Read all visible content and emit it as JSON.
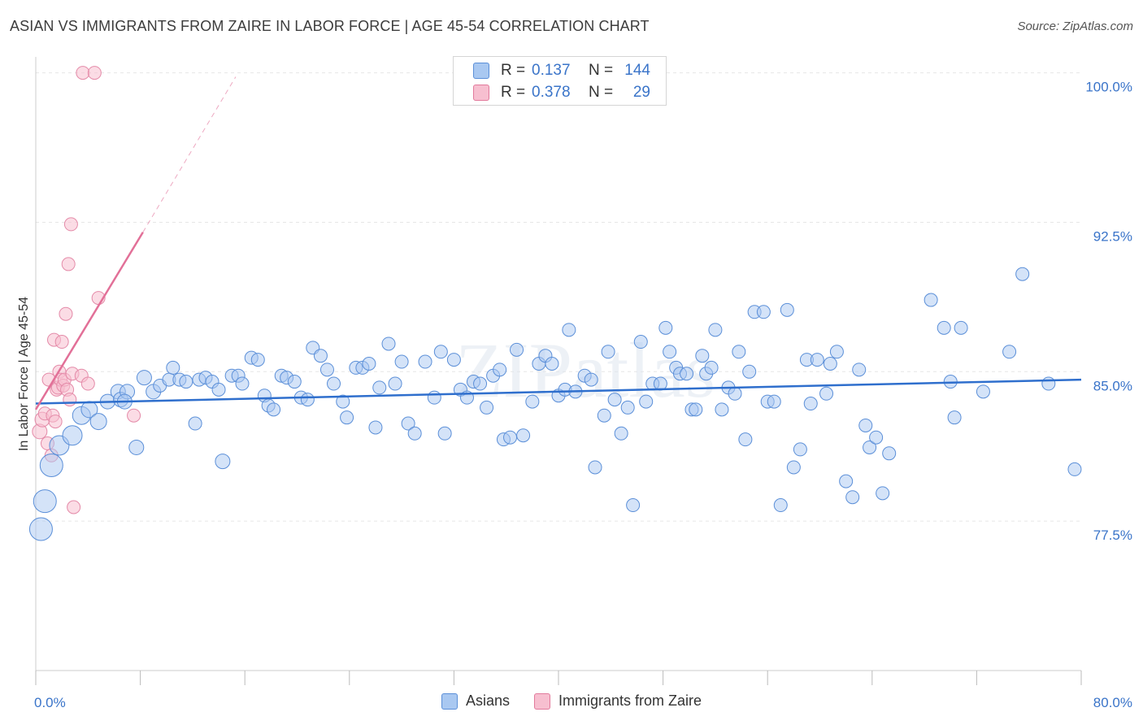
{
  "title": "ASIAN VS IMMIGRANTS FROM ZAIRE IN LABOR FORCE | AGE 45-54 CORRELATION CHART",
  "source": "Source: ZipAtlas.com",
  "watermark": "ZIPatlas",
  "legend": {
    "series": [
      {
        "name": "Asians",
        "r_label": "R =",
        "r": "0.137",
        "n_label": "N =",
        "n": "144",
        "color": "#a9c8f1",
        "stroke": "#5b8fd8"
      },
      {
        "name": "Immigrants from Zaire",
        "r_label": "R =",
        "r": "0.378",
        "n_label": "N =",
        "n": "29",
        "color": "#f7bfd0",
        "stroke": "#e27a9c"
      }
    ]
  },
  "colors": {
    "blue_fill": "#a9c8f1",
    "blue_stroke": "#5b8fd8",
    "blue_line": "#2f6fcd",
    "pink_fill": "#f7bfd0",
    "pink_stroke": "#e48aa8",
    "pink_line": "#e27098",
    "tick_text": "#3a74c9",
    "grid": "#e6e6e6"
  },
  "chart_data": {
    "type": "scatter",
    "title": "ASIAN VS IMMIGRANTS FROM ZAIRE IN LABOR FORCE | AGE 45-54 CORRELATION CHART",
    "xlabel": "",
    "ylabel": "In Labor Force | Age 45-54",
    "xlim": [
      0,
      80
    ],
    "ylim": [
      70,
      100.8
    ],
    "x_tick_labels": [
      {
        "value": 0,
        "label": "0.0%"
      },
      {
        "value": 80,
        "label": "80.0%"
      }
    ],
    "y_tick_labels": [
      {
        "value": 77.5,
        "label": "77.5%"
      },
      {
        "value": 85.0,
        "label": "85.0%"
      },
      {
        "value": 92.5,
        "label": "92.5%"
      },
      {
        "value": 100.0,
        "label": "100.0%"
      }
    ],
    "series": [
      {
        "name": "Asians",
        "R": 0.137,
        "N": 144,
        "trend": {
          "x": [
            0,
            80
          ],
          "y": [
            83.4,
            84.6
          ]
        },
        "points": [
          [
            0.4,
            77.1,
            14
          ],
          [
            0.7,
            78.5,
            14
          ],
          [
            1.2,
            80.3,
            14
          ],
          [
            1.8,
            81.3,
            12
          ],
          [
            2.8,
            81.8,
            12
          ],
          [
            3.5,
            82.8,
            11
          ],
          [
            4.1,
            83.1,
            10
          ],
          [
            4.8,
            82.5,
            10
          ],
          [
            5.5,
            83.5,
            9
          ],
          [
            6.3,
            84.0,
            9
          ],
          [
            6.5,
            83.6,
            9
          ],
          [
            7.0,
            84.0,
            9
          ],
          [
            6.8,
            83.5,
            9
          ],
          [
            7.7,
            81.2,
            9
          ],
          [
            8.3,
            84.7,
            9
          ],
          [
            9.0,
            84.0,
            9
          ],
          [
            9.5,
            84.3,
            8
          ],
          [
            10.2,
            84.6,
            8
          ],
          [
            10.5,
            85.2,
            8
          ],
          [
            11.0,
            84.6,
            8
          ],
          [
            11.5,
            84.5,
            8
          ],
          [
            12.2,
            82.4,
            8
          ],
          [
            12.5,
            84.6,
            8
          ],
          [
            13.0,
            84.7,
            8
          ],
          [
            13.5,
            84.5,
            8
          ],
          [
            14.0,
            84.1,
            8
          ],
          [
            14.3,
            80.5,
            9
          ],
          [
            15.0,
            84.8,
            8
          ],
          [
            15.5,
            84.8,
            8
          ],
          [
            15.8,
            84.4,
            8
          ],
          [
            16.5,
            85.7,
            8
          ],
          [
            17.0,
            85.6,
            8
          ],
          [
            17.5,
            83.8,
            8
          ],
          [
            17.8,
            83.3,
            8
          ],
          [
            18.2,
            83.1,
            8
          ],
          [
            18.8,
            84.8,
            8
          ],
          [
            19.2,
            84.7,
            8
          ],
          [
            19.8,
            84.5,
            8
          ],
          [
            20.3,
            83.7,
            8
          ],
          [
            20.8,
            83.6,
            8
          ],
          [
            21.2,
            86.2,
            8
          ],
          [
            21.8,
            85.8,
            8
          ],
          [
            22.3,
            85.1,
            8
          ],
          [
            22.8,
            84.4,
            8
          ],
          [
            23.5,
            83.5,
            8
          ],
          [
            23.8,
            82.7,
            8
          ],
          [
            24.5,
            85.2,
            8
          ],
          [
            25.0,
            85.2,
            8
          ],
          [
            25.5,
            85.4,
            8
          ],
          [
            26.0,
            82.2,
            8
          ],
          [
            26.3,
            84.2,
            8
          ],
          [
            27.0,
            86.4,
            8
          ],
          [
            27.5,
            84.4,
            8
          ],
          [
            28.0,
            85.5,
            8
          ],
          [
            28.5,
            82.4,
            8
          ],
          [
            29.0,
            81.9,
            8
          ],
          [
            29.8,
            85.5,
            8
          ],
          [
            30.5,
            83.7,
            8
          ],
          [
            31.0,
            86.0,
            8
          ],
          [
            31.3,
            81.9,
            8
          ],
          [
            32.0,
            85.6,
            8
          ],
          [
            32.5,
            84.1,
            8
          ],
          [
            33.0,
            83.7,
            8
          ],
          [
            33.5,
            84.5,
            8
          ],
          [
            34.0,
            84.4,
            8
          ],
          [
            34.5,
            83.2,
            8
          ],
          [
            35.0,
            84.8,
            8
          ],
          [
            35.5,
            85.1,
            8
          ],
          [
            35.8,
            81.6,
            8
          ],
          [
            36.3,
            81.7,
            8
          ],
          [
            36.8,
            86.1,
            8
          ],
          [
            37.3,
            81.8,
            8
          ],
          [
            38.0,
            83.5,
            8
          ],
          [
            38.5,
            85.4,
            8
          ],
          [
            39.0,
            85.8,
            8
          ],
          [
            39.5,
            85.4,
            8
          ],
          [
            40.0,
            83.8,
            8
          ],
          [
            40.5,
            84.1,
            8
          ],
          [
            40.8,
            87.1,
            8
          ],
          [
            41.3,
            84.0,
            8
          ],
          [
            42.0,
            84.8,
            8
          ],
          [
            42.5,
            84.6,
            8
          ],
          [
            42.8,
            80.2,
            8
          ],
          [
            43.5,
            82.8,
            8
          ],
          [
            43.8,
            86.0,
            8
          ],
          [
            44.3,
            83.6,
            8
          ],
          [
            44.8,
            81.9,
            8
          ],
          [
            45.3,
            83.2,
            8
          ],
          [
            45.7,
            78.3,
            8
          ],
          [
            46.3,
            86.5,
            8
          ],
          [
            46.7,
            83.5,
            8
          ],
          [
            47.2,
            84.4,
            8
          ],
          [
            47.8,
            84.4,
            8
          ],
          [
            48.2,
            87.2,
            8
          ],
          [
            48.5,
            86.0,
            8
          ],
          [
            49.0,
            85.2,
            8
          ],
          [
            49.3,
            84.9,
            8
          ],
          [
            49.8,
            84.9,
            8
          ],
          [
            50.2,
            83.1,
            8
          ],
          [
            50.5,
            83.1,
            8
          ],
          [
            51.0,
            85.8,
            8
          ],
          [
            51.3,
            84.9,
            8
          ],
          [
            51.7,
            85.2,
            8
          ],
          [
            52.0,
            87.1,
            8
          ],
          [
            52.5,
            83.1,
            8
          ],
          [
            53.0,
            84.2,
            8
          ],
          [
            53.5,
            83.9,
            8
          ],
          [
            53.8,
            86.0,
            8
          ],
          [
            54.3,
            81.6,
            8
          ],
          [
            54.6,
            85.0,
            8
          ],
          [
            55.0,
            88.0,
            8
          ],
          [
            55.7,
            88.0,
            8
          ],
          [
            56.0,
            83.5,
            8
          ],
          [
            56.5,
            83.5,
            8
          ],
          [
            57.0,
            78.3,
            8
          ],
          [
            57.5,
            88.1,
            8
          ],
          [
            58.0,
            80.2,
            8
          ],
          [
            58.5,
            81.1,
            8
          ],
          [
            59.0,
            85.6,
            8
          ],
          [
            59.3,
            83.4,
            8
          ],
          [
            59.8,
            85.6,
            8
          ],
          [
            60.5,
            83.9,
            8
          ],
          [
            60.8,
            85.4,
            8
          ],
          [
            61.3,
            86.0,
            8
          ],
          [
            62.0,
            79.5,
            8
          ],
          [
            62.5,
            78.7,
            8
          ],
          [
            63.0,
            85.1,
            8
          ],
          [
            63.5,
            82.3,
            8
          ],
          [
            63.8,
            81.2,
            8
          ],
          [
            64.3,
            81.7,
            8
          ],
          [
            64.8,
            78.9,
            8
          ],
          [
            65.3,
            80.9,
            8
          ],
          [
            68.5,
            88.6,
            8
          ],
          [
            69.5,
            87.2,
            8
          ],
          [
            70.0,
            84.5,
            8
          ],
          [
            70.3,
            82.7,
            8
          ],
          [
            70.8,
            87.2,
            8
          ],
          [
            72.5,
            84.0,
            8
          ],
          [
            74.5,
            86.0,
            8
          ],
          [
            75.5,
            89.9,
            8
          ],
          [
            77.5,
            84.4,
            8
          ],
          [
            79.5,
            80.1,
            8
          ]
        ]
      },
      {
        "name": "Immigrants from Zaire",
        "R": 0.378,
        "N": 29,
        "trend": {
          "x": [
            0,
            8.2
          ],
          "y": [
            83.1,
            92.0
          ]
        },
        "trend_dashed": {
          "x": [
            8.2,
            15.3
          ],
          "y": [
            92.0,
            99.8
          ]
        },
        "points": [
          [
            0.3,
            82.0,
            9
          ],
          [
            0.5,
            82.6,
            9
          ],
          [
            0.7,
            82.9,
            8
          ],
          [
            0.9,
            81.4,
            8
          ],
          [
            1.0,
            84.6,
            8
          ],
          [
            1.2,
            80.8,
            8
          ],
          [
            1.3,
            82.8,
            8
          ],
          [
            1.4,
            86.6,
            8
          ],
          [
            1.5,
            82.5,
            8
          ],
          [
            1.6,
            84.1,
            8
          ],
          [
            1.7,
            84.2,
            8
          ],
          [
            1.8,
            85.0,
            8
          ],
          [
            1.9,
            84.6,
            8
          ],
          [
            2.0,
            86.5,
            8
          ],
          [
            2.1,
            84.3,
            8
          ],
          [
            2.2,
            84.6,
            8
          ],
          [
            2.3,
            87.9,
            8
          ],
          [
            2.4,
            84.1,
            8
          ],
          [
            2.5,
            90.4,
            8
          ],
          [
            2.6,
            83.6,
            8
          ],
          [
            2.7,
            92.4,
            8
          ],
          [
            2.8,
            84.9,
            8
          ],
          [
            2.9,
            78.2,
            8
          ],
          [
            3.5,
            84.8,
            8
          ],
          [
            3.6,
            100.0,
            8
          ],
          [
            4.0,
            84.4,
            8
          ],
          [
            4.5,
            100.0,
            8
          ],
          [
            4.8,
            88.7,
            8
          ],
          [
            7.5,
            82.8,
            8
          ]
        ]
      }
    ]
  }
}
